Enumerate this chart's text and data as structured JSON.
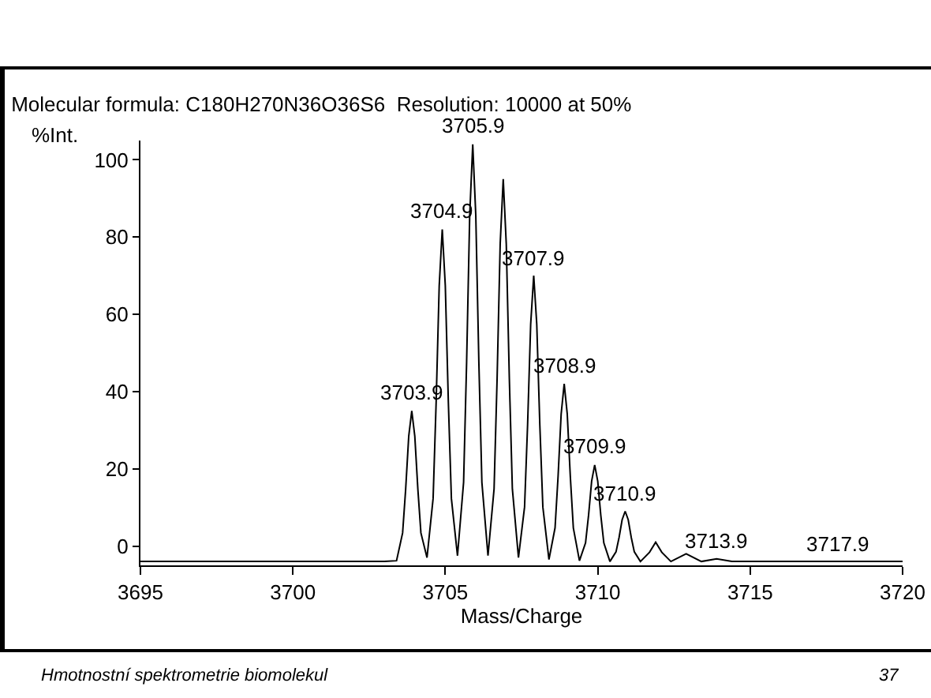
{
  "chart_data": {
    "type": "line",
    "title": "Molecular formula: C180H270N36O36S6  Resolution: 10000 at 50%",
    "xlabel": "Mass/Charge",
    "ylabel": "%Int.",
    "series": [
      {
        "color": "#000000",
        "x": [
          3695,
          3703,
          3703.4,
          3703.6,
          3703.7,
          3703.8,
          3703.9,
          3704,
          3704.1,
          3704.2,
          3704.4,
          3704.6,
          3704.7,
          3704.8,
          3704.9,
          3705,
          3705.1,
          3705.2,
          3705.4,
          3705.6,
          3705.7,
          3705.8,
          3705.9,
          3706,
          3706.1,
          3706.2,
          3706.4,
          3706.6,
          3706.7,
          3706.8,
          3706.9,
          3707,
          3707.1,
          3707.2,
          3707.4,
          3707.6,
          3707.7,
          3707.8,
          3707.9,
          3708,
          3708.1,
          3708.2,
          3708.4,
          3708.6,
          3708.7,
          3708.8,
          3708.9,
          3709,
          3709.1,
          3709.2,
          3709.4,
          3709.6,
          3709.7,
          3709.8,
          3709.9,
          3710,
          3710.1,
          3710.2,
          3710.4,
          3710.6,
          3710.7,
          3710.8,
          3710.9,
          3711,
          3711.1,
          3711.2,
          3711.4,
          3711.7,
          3711.9,
          3712.1,
          3712.4,
          3712.9,
          3713.4,
          3713.9,
          3714.4,
          3720
        ],
        "values": [
          -4,
          -4,
          -3.8,
          3.4,
          14.7,
          28.4,
          35,
          28.4,
          14.7,
          3.4,
          -3,
          12.3,
          37.3,
          67.4,
          82,
          67.4,
          37.3,
          12.3,
          -2.5,
          16.5,
          47.8,
          85.6,
          104,
          85.6,
          47.8,
          16.5,
          -2.5,
          14.8,
          43.5,
          78.2,
          95,
          78.2,
          43.5,
          14.8,
          -3,
          10.1,
          31.5,
          57.4,
          70,
          57.4,
          31.5,
          10.1,
          -3.5,
          4.7,
          18.1,
          34.2,
          42,
          34.2,
          18.1,
          4.7,
          -3.8,
          0.8,
          8,
          16.8,
          21,
          16.8,
          8,
          0.8,
          -4,
          -1.5,
          2.2,
          6.8,
          9,
          6.8,
          2.2,
          -1.5,
          -4,
          -1.6,
          1,
          -1.6,
          -4,
          -2,
          -4,
          -3.3,
          -4,
          -4
        ]
      }
    ],
    "xlim": [
      3695,
      3720
    ],
    "xticks": [
      3695,
      3700,
      3705,
      3710,
      3715,
      3720
    ],
    "ylim": [
      -5,
      105
    ],
    "yticks": [
      0,
      20,
      40,
      60,
      80,
      100
    ],
    "grid": false,
    "marker": "none",
    "line_style": "solid",
    "annotations": [
      {
        "text": "3703.9",
        "x": 3703.9,
        "y": 35
      },
      {
        "text": "3704.9",
        "x": 3704.9,
        "y": 82
      },
      {
        "text": "3705.9",
        "x": 3705.9,
        "y": 104
      },
      {
        "text": "3707.9",
        "x": 3707.9,
        "y": 70
      },
      {
        "text": "3708.9",
        "x": 3708.9,
        "y": 42
      },
      {
        "text": "3709.9",
        "x": 3709.9,
        "y": 21
      },
      {
        "text": "3710.9",
        "x": 3710.9,
        "y": 9
      },
      {
        "text": "3713.9",
        "x": 3713.9,
        "y": -3.3
      },
      {
        "text": "3717.9",
        "x": 3717.9,
        "y": -4
      },
      "Hmotnostní spektrometrie biomolekul",
      "37"
    ]
  }
}
